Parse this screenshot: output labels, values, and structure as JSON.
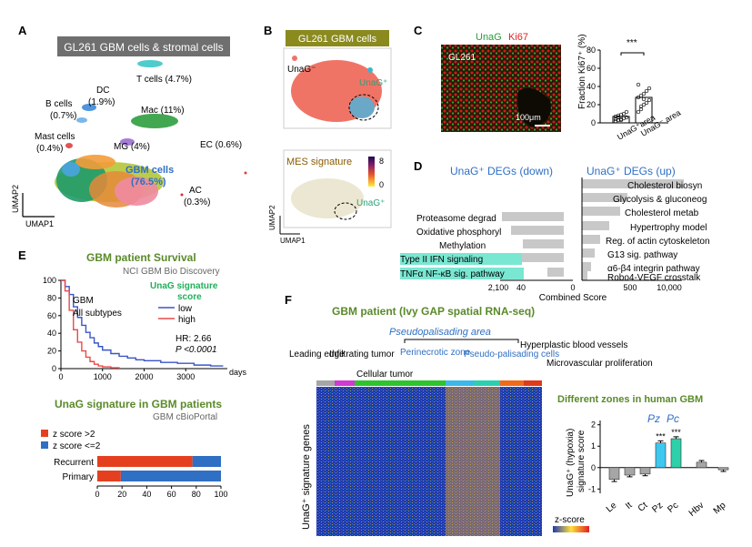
{
  "panels": {
    "A": {
      "letter": "A",
      "banner": "GL261 GBM cells & stromal cells",
      "axis_y": "UMAP2",
      "axis_x": "UMAP1",
      "labels": [
        {
          "id": "tcells",
          "text": "T cells (4.7%)"
        },
        {
          "id": "dc",
          "text": "DC"
        },
        {
          "id": "dc_pct",
          "text": "(1.9%)"
        },
        {
          "id": "bcells",
          "text": "B cells"
        },
        {
          "id": "bcells_pct",
          "text": "(0.7%)"
        },
        {
          "id": "mac",
          "text": "Mac (11%)"
        },
        {
          "id": "mast",
          "text": "Mast cells"
        },
        {
          "id": "mast_pct",
          "text": "(0.4%)"
        },
        {
          "id": "mg",
          "text": "MG (4%)"
        },
        {
          "id": "ec",
          "text": "EC (0.6%)"
        },
        {
          "id": "gbm",
          "text": "GBM cells"
        },
        {
          "id": "gbm_pct",
          "text": "(76.5%)"
        },
        {
          "id": "ac",
          "text": "AC"
        },
        {
          "id": "ac_pct",
          "text": "(0.3%)"
        }
      ]
    },
    "B": {
      "letter": "B",
      "banner": "GL261 GBM cells",
      "unag_neg": "UnaG⁻",
      "unag_pos": "UnaG⁺",
      "mes_title": "MES signature",
      "mes_unag_pos": "UnaG⁺",
      "scale_max": "8",
      "scale_min": "0",
      "axis_y": "UMAP2",
      "axis_x": "UMAP1"
    },
    "C": {
      "letter": "C",
      "title_unag": "UnaG",
      "title_ki67": "Ki67",
      "image_label": "GL261",
      "scalebar": "100μm",
      "ylabel": "Fraction Ki67⁺ (%)",
      "yticks": [
        "0",
        "20",
        "40",
        "60",
        "80"
      ],
      "sig": "***",
      "xticks": [
        "UnaG⁺area",
        "UnaG⁻ area"
      ]
    },
    "D": {
      "letter": "D",
      "title_down": "UnaG⁺ DEGs (down)",
      "title_up": "UnaG⁺ DEGs (up)",
      "down_terms": [
        "Proteasome degrad",
        "Oxidative phosphoryl",
        "Methylation",
        "Type II IFN signaling",
        "TNFα NF-κB sig. pathway"
      ],
      "up_terms": [
        "Cholesterol biosyn",
        "Glycolysis & gluconeog",
        "Cholesterol metab",
        "Hypertrophy model",
        "Reg. of actin cytoskeleton",
        "G13 sig. pathway",
        "α6-β4 integrin pathway",
        "Robo4-VEGF crosstalk"
      ],
      "xticks": [
        "2,100",
        "40",
        "0",
        "500",
        "10,000"
      ],
      "xlabel": "Combined Score"
    },
    "E": {
      "letter": "E",
      "survival_title": "GBM patient Survival",
      "survival_source": "NCI GBM Bio Discovery",
      "cohort_line1": "GBM",
      "cohort_line2": "All subtypes",
      "legend_title_line1": "UnaG signature",
      "legend_title_line2": "score",
      "legend_low": "low",
      "legend_high": "high",
      "hr": "HR: 2.66",
      "pval": "P <0.0001",
      "xlabel": "days",
      "yticks": [
        "0",
        "20",
        "40",
        "60",
        "80",
        "100"
      ],
      "xticks": [
        "0",
        "1000",
        "2000",
        "3000"
      ],
      "bar_title": "UnaG signature in GBM patients",
      "bar_source": "GBM cBioPortal",
      "bar_legend": [
        "z score >2",
        "z score <=2"
      ],
      "bar_xticks": [
        "0",
        "20",
        "40",
        "60",
        "80",
        "100"
      ]
    },
    "F": {
      "letter": "F",
      "title": "GBM patient (Ivy GAP spatial RNA-seq)",
      "pseudo_area": "Pseudopalisading area",
      "zones": [
        "Leading edge",
        "Infiltrating tumor",
        "Cellular tumor",
        "Perinecrotic zone",
        "Pseudo-palisading cells",
        "Hyperplastic blood vessels",
        "Microvascular proliferation"
      ],
      "ylabel": "UnaG⁺ signature genes",
      "zscore": "z-score",
      "bar_title": "Different zones in human GBM",
      "bar_ylabel_line1": "UnaG⁺ (hypoxia)",
      "bar_ylabel_line2": "signature score",
      "pz": "Pz",
      "pc": "Pc",
      "yticks": [
        "-1",
        "0",
        "1",
        "2"
      ]
    }
  },
  "chart_data": [
    {
      "type": "line",
      "title": "GBM patient Survival",
      "xlabel": "days",
      "ylabel": "",
      "xlim": [
        0,
        4000
      ],
      "ylim": [
        0,
        100
      ],
      "series": [
        {
          "name": "low",
          "color": "#3a55c8",
          "x": [
            0,
            100,
            200,
            300,
            400,
            500,
            600,
            700,
            800,
            900,
            1000,
            1200,
            1400,
            1600,
            1800,
            2000,
            2400,
            2800,
            3200,
            3600,
            3900
          ],
          "y": [
            100,
            93,
            84,
            70,
            58,
            49,
            41,
            35,
            29,
            25,
            21,
            17,
            14,
            12,
            10,
            9,
            7,
            6,
            4,
            3,
            3
          ]
        },
        {
          "name": "high",
          "color": "#e84a4a",
          "x": [
            0,
            100,
            200,
            300,
            400,
            500,
            600,
            700,
            800,
            900,
            1000,
            1200,
            1400
          ],
          "y": [
            100,
            88,
            66,
            44,
            30,
            20,
            13,
            8,
            5,
            3,
            2,
            1,
            0
          ]
        }
      ],
      "annotations": [
        "HR: 2.66",
        "P <0.0001"
      ]
    },
    {
      "type": "bar",
      "title": "UnaG signature in GBM patients",
      "categories": [
        "Recurrent",
        "Primary"
      ],
      "series": [
        {
          "name": "z score >2",
          "color": "#e4401f",
          "values": [
            77,
            19
          ]
        },
        {
          "name": "z score <=2",
          "color": "#2f6fc4",
          "values": [
            23,
            81
          ]
        }
      ],
      "xlim": [
        0,
        100
      ]
    },
    {
      "type": "bar",
      "title": "Different zones in human GBM",
      "categories": [
        "Le",
        "It",
        "Ct",
        "Pz",
        "Pc",
        "Hbv",
        "Mp"
      ],
      "values": [
        -0.55,
        -0.35,
        -0.3,
        1.15,
        1.35,
        0.25,
        -0.1
      ],
      "errors": [
        0.1,
        0.08,
        0.08,
        0.1,
        0.09,
        0.08,
        0.08
      ],
      "significance": [
        "",
        "",
        "",
        "***",
        "***",
        "",
        ""
      ],
      "ylabel": "UnaG⁺ (hypoxia) signature score",
      "ylim": [
        -1.2,
        2.2
      ]
    },
    {
      "type": "bar",
      "title": "UnaG⁺ DEGs",
      "xlabel": "Combined Score",
      "categories": [
        "Proteasome degrad",
        "Oxidative phosphoryl",
        "Methylation",
        "Type II IFN signaling",
        "TNFα NF-κB sig. pathway",
        "Cholesterol biosyn",
        "Glycolysis & gluconeog",
        "Cholesterol metab",
        "Hypertrophy model",
        "Reg. of actin cytoskeleton",
        "G13 sig. pathway",
        "α6-β4 integrin pathway",
        "Robo4-VEGF crosstalk"
      ],
      "values": [
        -600,
        -280,
        -200,
        -120,
        -30,
        5000,
        1200,
        900,
        400,
        250,
        180,
        130,
        90
      ]
    },
    {
      "type": "scatter",
      "title": "Fraction Ki67⁺ (%)",
      "categories": [
        "UnaG⁺area",
        "UnaG⁻ area"
      ],
      "means": [
        7,
        28
      ],
      "points": [
        [
          2,
          3,
          4,
          5,
          6,
          7,
          8,
          9,
          10,
          12,
          4,
          6,
          3
        ],
        [
          12,
          15,
          20,
          22,
          25,
          28,
          30,
          32,
          35,
          38,
          42,
          18,
          26
        ]
      ],
      "ylim": [
        0,
        80
      ]
    }
  ]
}
